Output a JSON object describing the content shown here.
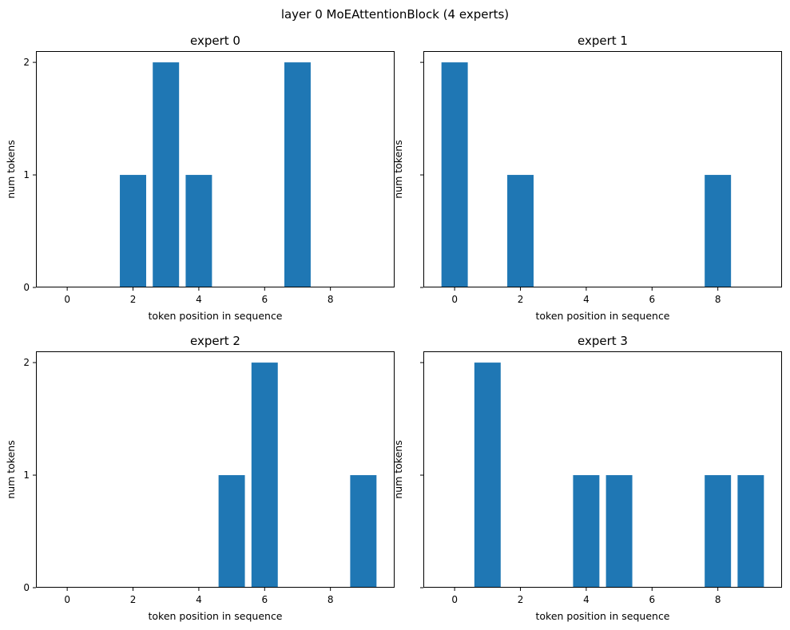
{
  "figure_title": "layer 0 MoEAttentionBlock (4 experts)",
  "chart_data": [
    {
      "type": "bar",
      "title": "expert 0",
      "xlabel": "token position in sequence",
      "ylabel": "num tokens",
      "x": [
        0,
        1,
        2,
        3,
        4,
        5,
        6,
        7,
        8,
        9
      ],
      "values": [
        0,
        0,
        1,
        2,
        1,
        0,
        0,
        2,
        0,
        0
      ],
      "xticks": [
        0,
        2,
        4,
        6,
        8
      ],
      "yticks": [
        0,
        1,
        2
      ],
      "xlim": [
        -0.95,
        9.95
      ],
      "ylim": [
        0,
        2.1
      ],
      "color": "#1f77b4",
      "show_ytick_labels": true
    },
    {
      "type": "bar",
      "title": "expert 1",
      "xlabel": "token position in sequence",
      "ylabel": "num tokens",
      "x": [
        0,
        1,
        2,
        3,
        4,
        5,
        6,
        7,
        8,
        9
      ],
      "values": [
        2,
        0,
        1,
        0,
        0,
        0,
        0,
        0,
        1,
        0
      ],
      "xticks": [
        0,
        2,
        4,
        6,
        8
      ],
      "yticks": [
        0,
        1,
        2
      ],
      "xlim": [
        -0.95,
        9.95
      ],
      "ylim": [
        0,
        2.1
      ],
      "color": "#1f77b4",
      "show_ytick_labels": false
    },
    {
      "type": "bar",
      "title": "expert 2",
      "xlabel": "token position in sequence",
      "ylabel": "num tokens",
      "x": [
        0,
        1,
        2,
        3,
        4,
        5,
        6,
        7,
        8,
        9
      ],
      "values": [
        0,
        0,
        0,
        0,
        0,
        1,
        2,
        0,
        0,
        1
      ],
      "xticks": [
        0,
        2,
        4,
        6,
        8
      ],
      "yticks": [
        0,
        1,
        2
      ],
      "xlim": [
        -0.95,
        9.95
      ],
      "ylim": [
        0,
        2.1
      ],
      "color": "#1f77b4",
      "show_ytick_labels": true
    },
    {
      "type": "bar",
      "title": "expert 3",
      "xlabel": "token position in sequence",
      "ylabel": "num tokens",
      "x": [
        0,
        1,
        2,
        3,
        4,
        5,
        6,
        7,
        8,
        9
      ],
      "values": [
        0,
        2,
        0,
        0,
        1,
        1,
        0,
        0,
        1,
        1
      ],
      "xticks": [
        0,
        2,
        4,
        6,
        8
      ],
      "yticks": [
        0,
        1,
        2
      ],
      "xlim": [
        -0.95,
        9.95
      ],
      "ylim": [
        0,
        2.1
      ],
      "color": "#1f77b4",
      "show_ytick_labels": false
    }
  ]
}
